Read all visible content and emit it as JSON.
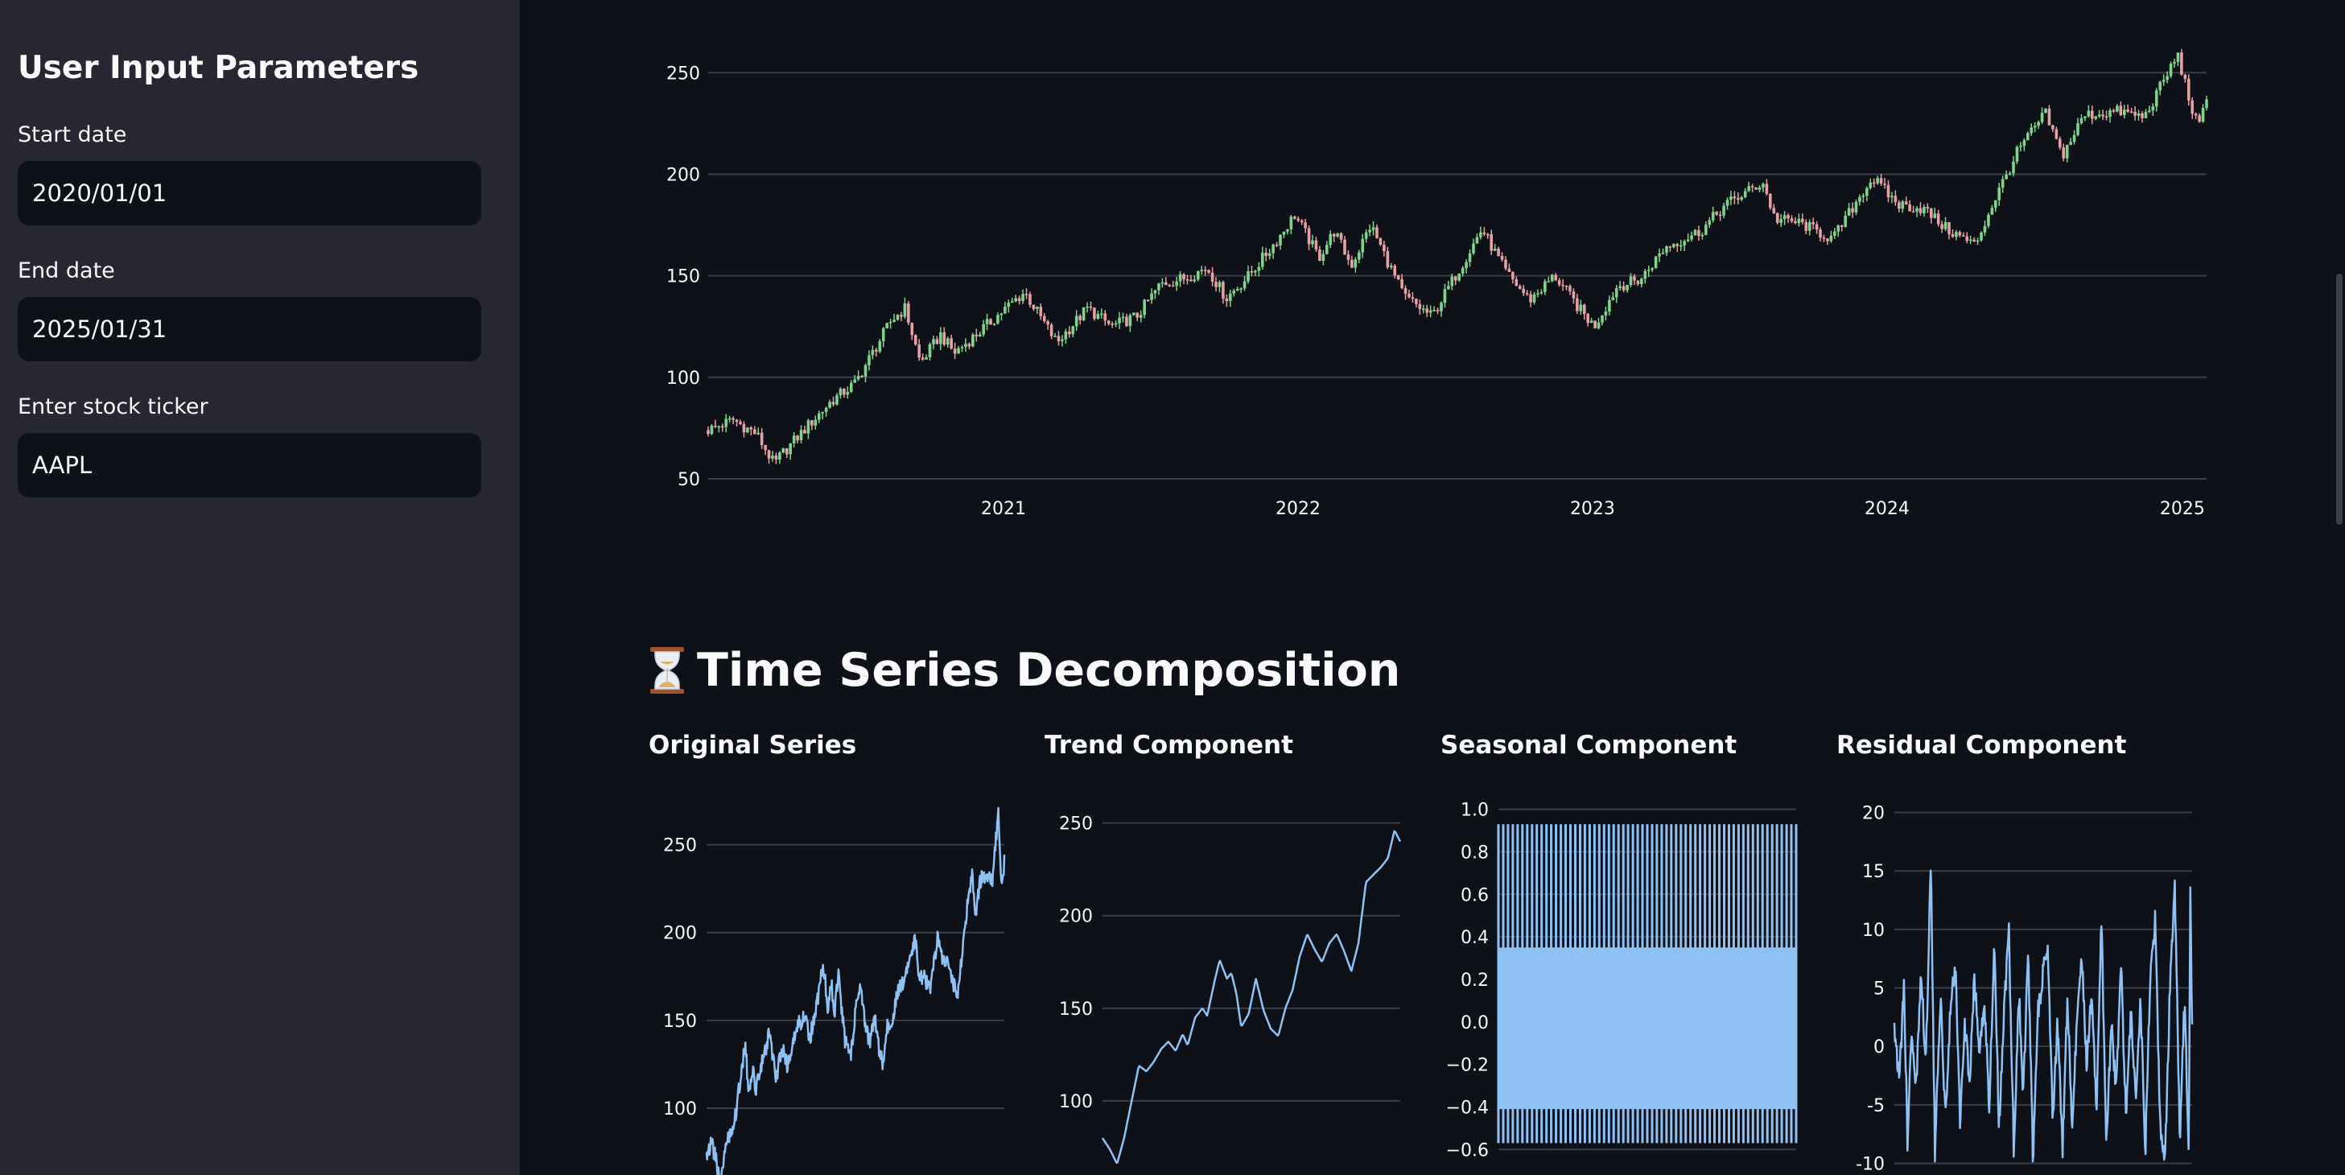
{
  "sidebar": {
    "title": "User Input Parameters",
    "start_date": {
      "label": "Start date",
      "value": "2020/01/01"
    },
    "end_date": {
      "label": "End date",
      "value": "2025/01/31"
    },
    "ticker": {
      "label": "Enter stock ticker",
      "value": "AAPL"
    }
  },
  "main": {
    "section_title": "Time Series Decomposition",
    "section_icon": "hourglass-icon",
    "subplots": [
      {
        "title": "Original Series"
      },
      {
        "title": "Trend Component"
      },
      {
        "title": "Seasonal Component"
      },
      {
        "title": "Residual Component"
      }
    ]
  },
  "colors": {
    "background": "#0e1117",
    "sidebar": "#262730",
    "candle_up": "#7fd48b",
    "candle_down": "#e8a0a4",
    "series_line": "#8fc2f4",
    "grid": "#3a3d45"
  },
  "chart_data": [
    {
      "type": "candlestick",
      "title": "",
      "x_ticks": [
        "2021",
        "2022",
        "2023",
        "2024",
        "2025"
      ],
      "y_ticks": [
        50,
        100,
        150,
        200,
        250
      ],
      "x_range": [
        "2020-01-01",
        "2025-01-31"
      ],
      "y_range": [
        48,
        262
      ],
      "grid": "horizontal",
      "close_series": [
        [
          "2020-01-01",
          74
        ],
        [
          "2020-02-01",
          79
        ],
        [
          "2020-03-01",
          72
        ],
        [
          "2020-03-23",
          57
        ],
        [
          "2020-04-01",
          62
        ],
        [
          "2020-05-01",
          75
        ],
        [
          "2020-06-01",
          88
        ],
        [
          "2020-07-01",
          97
        ],
        [
          "2020-08-15",
          128
        ],
        [
          "2020-09-01",
          134
        ],
        [
          "2020-09-20",
          107
        ],
        [
          "2020-10-15",
          121
        ],
        [
          "2020-11-01",
          112
        ],
        [
          "2020-12-01",
          122
        ],
        [
          "2021-01-01",
          133
        ],
        [
          "2021-01-27",
          142
        ],
        [
          "2021-03-08",
          117
        ],
        [
          "2021-04-15",
          134
        ],
        [
          "2021-05-15",
          125
        ],
        [
          "2021-06-15",
          130
        ],
        [
          "2021-07-15",
          146
        ],
        [
          "2021-08-15",
          149
        ],
        [
          "2021-09-10",
          154
        ],
        [
          "2021-10-04",
          139
        ],
        [
          "2021-11-01",
          150
        ],
        [
          "2021-12-01",
          165
        ],
        [
          "2021-12-28",
          180
        ],
        [
          "2022-01-27",
          159
        ],
        [
          "2022-02-15",
          172
        ],
        [
          "2022-03-08",
          155
        ],
        [
          "2022-04-01",
          175
        ],
        [
          "2022-05-12",
          140
        ],
        [
          "2022-06-16",
          130
        ],
        [
          "2022-07-15",
          150
        ],
        [
          "2022-08-17",
          173
        ],
        [
          "2022-09-15",
          152
        ],
        [
          "2022-10-15",
          138
        ],
        [
          "2022-11-15",
          150
        ],
        [
          "2022-12-15",
          134
        ],
        [
          "2023-01-03",
          125
        ],
        [
          "2023-02-01",
          145
        ],
        [
          "2023-03-01",
          148
        ],
        [
          "2023-04-01",
          164
        ],
        [
          "2023-05-15",
          172
        ],
        [
          "2023-06-15",
          185
        ],
        [
          "2023-07-31",
          196
        ],
        [
          "2023-08-15",
          178
        ],
        [
          "2023-09-15",
          176
        ],
        [
          "2023-10-26",
          168
        ],
        [
          "2023-12-01",
          191
        ],
        [
          "2023-12-14",
          198
        ],
        [
          "2024-01-15",
          185
        ],
        [
          "2024-02-15",
          183
        ],
        [
          "2024-03-15",
          173
        ],
        [
          "2024-04-19",
          165
        ],
        [
          "2024-05-15",
          189
        ],
        [
          "2024-06-12",
          212
        ],
        [
          "2024-07-15",
          230
        ],
        [
          "2024-08-05",
          209
        ],
        [
          "2024-09-01",
          229
        ],
        [
          "2024-10-15",
          231
        ],
        [
          "2024-11-15",
          228
        ],
        [
          "2024-12-26",
          259
        ],
        [
          "2025-01-10",
          236
        ],
        [
          "2025-01-21",
          222
        ],
        [
          "2025-01-31",
          237
        ]
      ]
    },
    {
      "type": "line",
      "title": "Original Series",
      "y_ticks": [
        100,
        150,
        200,
        250
      ],
      "y_range": [
        62,
        275
      ],
      "x_range": [
        "2020-01-01",
        "2025-01-31"
      ],
      "grid": "horizontal",
      "values": [
        [
          "2020-01-01",
          75
        ],
        [
          "2020-02-01",
          80
        ],
        [
          "2020-03-01",
          70
        ],
        [
          "2020-03-23",
          57
        ],
        [
          "2020-04-01",
          62
        ],
        [
          "2020-05-01",
          77
        ],
        [
          "2020-06-01",
          88
        ],
        [
          "2020-07-01",
          96
        ],
        [
          "2020-08-15",
          128
        ],
        [
          "2020-09-01",
          134
        ],
        [
          "2020-09-20",
          107
        ],
        [
          "2020-10-15",
          121
        ],
        [
          "2020-11-01",
          111
        ],
        [
          "2020-12-01",
          123
        ],
        [
          "2021-01-01",
          132
        ],
        [
          "2021-01-27",
          143
        ],
        [
          "2021-03-08",
          116
        ],
        [
          "2021-04-15",
          135
        ],
        [
          "2021-05-15",
          124
        ],
        [
          "2021-06-15",
          131
        ],
        [
          "2021-07-15",
          147
        ],
        [
          "2021-08-15",
          150
        ],
        [
          "2021-09-10",
          155
        ],
        [
          "2021-10-04",
          138
        ],
        [
          "2021-11-01",
          151
        ],
        [
          "2021-12-01",
          166
        ],
        [
          "2021-12-28",
          182
        ],
        [
          "2022-01-27",
          158
        ],
        [
          "2022-02-15",
          174
        ],
        [
          "2022-03-08",
          154
        ],
        [
          "2022-04-01",
          176
        ],
        [
          "2022-05-12",
          139
        ],
        [
          "2022-06-16",
          129
        ],
        [
          "2022-07-15",
          152
        ],
        [
          "2022-08-17",
          174
        ],
        [
          "2022-09-15",
          150
        ],
        [
          "2022-10-15",
          137
        ],
        [
          "2022-11-15",
          151
        ],
        [
          "2022-12-15",
          132
        ],
        [
          "2023-01-03",
          125
        ],
        [
          "2023-02-01",
          146
        ],
        [
          "2023-03-01",
          147
        ],
        [
          "2023-04-01",
          165
        ],
        [
          "2023-05-15",
          173
        ],
        [
          "2023-06-15",
          186
        ],
        [
          "2023-07-31",
          196
        ],
        [
          "2023-08-15",
          177
        ],
        [
          "2023-09-15",
          175
        ],
        [
          "2023-10-26",
          167
        ],
        [
          "2023-12-01",
          190
        ],
        [
          "2023-12-14",
          198
        ],
        [
          "2024-01-15",
          184
        ],
        [
          "2024-02-15",
          182
        ],
        [
          "2024-03-15",
          172
        ],
        [
          "2024-04-19",
          165
        ],
        [
          "2024-05-15",
          190
        ],
        [
          "2024-06-12",
          214
        ],
        [
          "2024-07-15",
          232
        ],
        [
          "2024-08-05",
          208
        ],
        [
          "2024-09-01",
          230
        ],
        [
          "2024-10-15",
          232
        ],
        [
          "2024-11-15",
          228
        ],
        [
          "2024-12-26",
          268
        ],
        [
          "2025-01-10",
          233
        ],
        [
          "2025-01-21",
          225
        ],
        [
          "2025-01-31",
          240
        ]
      ]
    },
    {
      "type": "line",
      "title": "Trend Component",
      "y_ticks": [
        100,
        150,
        200,
        250
      ],
      "y_range": [
        60,
        262
      ],
      "x_range": [
        "2020-01-01",
        "2025-01-31"
      ],
      "grid": "horizontal",
      "values": [
        [
          "2020-01-01",
          80
        ],
        [
          "2020-02-15",
          74
        ],
        [
          "2020-04-01",
          66
        ],
        [
          "2020-05-15",
          80
        ],
        [
          "2020-07-01",
          100
        ],
        [
          "2020-08-15",
          119
        ],
        [
          "2020-10-01",
          116
        ],
        [
          "2020-11-15",
          121
        ],
        [
          "2021-01-01",
          128
        ],
        [
          "2021-02-15",
          132
        ],
        [
          "2021-04-01",
          127
        ],
        [
          "2021-05-15",
          136
        ],
        [
          "2021-06-15",
          130
        ],
        [
          "2021-08-01",
          145
        ],
        [
          "2021-09-15",
          150
        ],
        [
          "2021-10-15",
          146
        ],
        [
          "2021-12-01",
          165
        ],
        [
          "2022-01-01",
          176
        ],
        [
          "2022-02-15",
          166
        ],
        [
          "2022-03-15",
          169
        ],
        [
          "2022-04-15",
          158
        ],
        [
          "2022-05-15",
          140
        ],
        [
          "2022-07-01",
          147
        ],
        [
          "2022-08-15",
          166
        ],
        [
          "2022-10-01",
          149
        ],
        [
          "2022-11-15",
          139
        ],
        [
          "2023-01-01",
          135
        ],
        [
          "2023-02-15",
          150
        ],
        [
          "2023-04-01",
          160
        ],
        [
          "2023-05-15",
          178
        ],
        [
          "2023-07-01",
          190
        ],
        [
          "2023-08-15",
          182
        ],
        [
          "2023-10-01",
          175
        ],
        [
          "2023-11-15",
          185
        ],
        [
          "2024-01-01",
          190
        ],
        [
          "2024-02-15",
          181
        ],
        [
          "2024-04-01",
          170
        ],
        [
          "2024-05-15",
          185
        ],
        [
          "2024-07-01",
          218
        ],
        [
          "2024-08-15",
          222
        ],
        [
          "2024-10-01",
          226
        ],
        [
          "2024-11-15",
          231
        ],
        [
          "2024-12-26",
          246
        ],
        [
          "2025-01-31",
          240
        ]
      ]
    },
    {
      "type": "line",
      "title": "Seasonal Component",
      "y_ticks": [
        1.0,
        0.8,
        0.6,
        0.4,
        0.2,
        0.0,
        -0.2,
        -0.4,
        -0.6
      ],
      "y_range": [
        -0.72,
        1.04
      ],
      "x_range": [
        "2020-01-01",
        "2025-01-31"
      ],
      "grid": "horizontal",
      "pattern": {
        "max": 0.93,
        "upper": 0.35,
        "lower": -0.41,
        "min": -0.57,
        "cycles": 62
      }
    },
    {
      "type": "line",
      "title": "Residual Component",
      "y_ticks": [
        20,
        15,
        10,
        5,
        0,
        -5,
        -10
      ],
      "y_range": [
        -11,
        21
      ],
      "x_range": [
        "2020-01-01",
        "2025-01-31"
      ],
      "grid": "horizontal",
      "values": [
        [
          "2020-01-01",
          2
        ],
        [
          "2020-02-01",
          -3
        ],
        [
          "2020-03-01",
          5
        ],
        [
          "2020-03-23",
          -8
        ],
        [
          "2020-04-15",
          1
        ],
        [
          "2020-05-15",
          -4
        ],
        [
          "2020-06-15",
          7
        ],
        [
          "2020-07-15",
          -2
        ],
        [
          "2020-08-15",
          16
        ],
        [
          "2020-09-10",
          -9
        ],
        [
          "2020-10-15",
          4
        ],
        [
          "2020-11-15",
          -6
        ],
        [
          "2020-12-15",
          3
        ],
        [
          "2021-01-15",
          7
        ],
        [
          "2021-02-15",
          -7
        ],
        [
          "2021-03-15",
          2
        ],
        [
          "2021-04-15",
          -3
        ],
        [
          "2021-05-15",
          6
        ],
        [
          "2021-06-15",
          -1
        ],
        [
          "2021-07-15",
          4
        ],
        [
          "2021-08-15",
          -5
        ],
        [
          "2021-09-15",
          9
        ],
        [
          "2021-10-15",
          -7
        ],
        [
          "2021-11-15",
          3
        ],
        [
          "2021-12-15",
          10
        ],
        [
          "2022-01-15",
          -9
        ],
        [
          "2022-02-15",
          5
        ],
        [
          "2022-03-15",
          -4
        ],
        [
          "2022-04-15",
          8
        ],
        [
          "2022-05-15",
          -10
        ],
        [
          "2022-06-15",
          3
        ],
        [
          "2022-07-15",
          6
        ],
        [
          "2022-08-15",
          9
        ],
        [
          "2022-09-15",
          -6
        ],
        [
          "2022-10-15",
          2
        ],
        [
          "2022-11-15",
          -9
        ],
        [
          "2022-12-15",
          4
        ],
        [
          "2023-01-15",
          -7
        ],
        [
          "2023-02-15",
          3
        ],
        [
          "2023-03-15",
          8
        ],
        [
          "2023-04-15",
          -2
        ],
        [
          "2023-05-15",
          5
        ],
        [
          "2023-06-15",
          -5
        ],
        [
          "2023-07-15",
          11
        ],
        [
          "2023-08-15",
          -8
        ],
        [
          "2023-09-15",
          2
        ],
        [
          "2023-10-15",
          -4
        ],
        [
          "2023-11-15",
          7
        ],
        [
          "2023-12-15",
          -6
        ],
        [
          "2024-01-15",
          3
        ],
        [
          "2024-02-15",
          -5
        ],
        [
          "2024-03-15",
          4
        ],
        [
          "2024-04-15",
          -9
        ],
        [
          "2024-05-15",
          6
        ],
        [
          "2024-06-15",
          11
        ],
        [
          "2024-07-15",
          -7
        ],
        [
          "2024-08-15",
          -10
        ],
        [
          "2024-09-15",
          5
        ],
        [
          "2024-10-15",
          14
        ],
        [
          "2024-11-15",
          -8
        ],
        [
          "2024-12-15",
          4
        ],
        [
          "2025-01-10",
          -9
        ],
        [
          "2025-01-20",
          13
        ],
        [
          "2025-01-31",
          1
        ]
      ]
    }
  ]
}
